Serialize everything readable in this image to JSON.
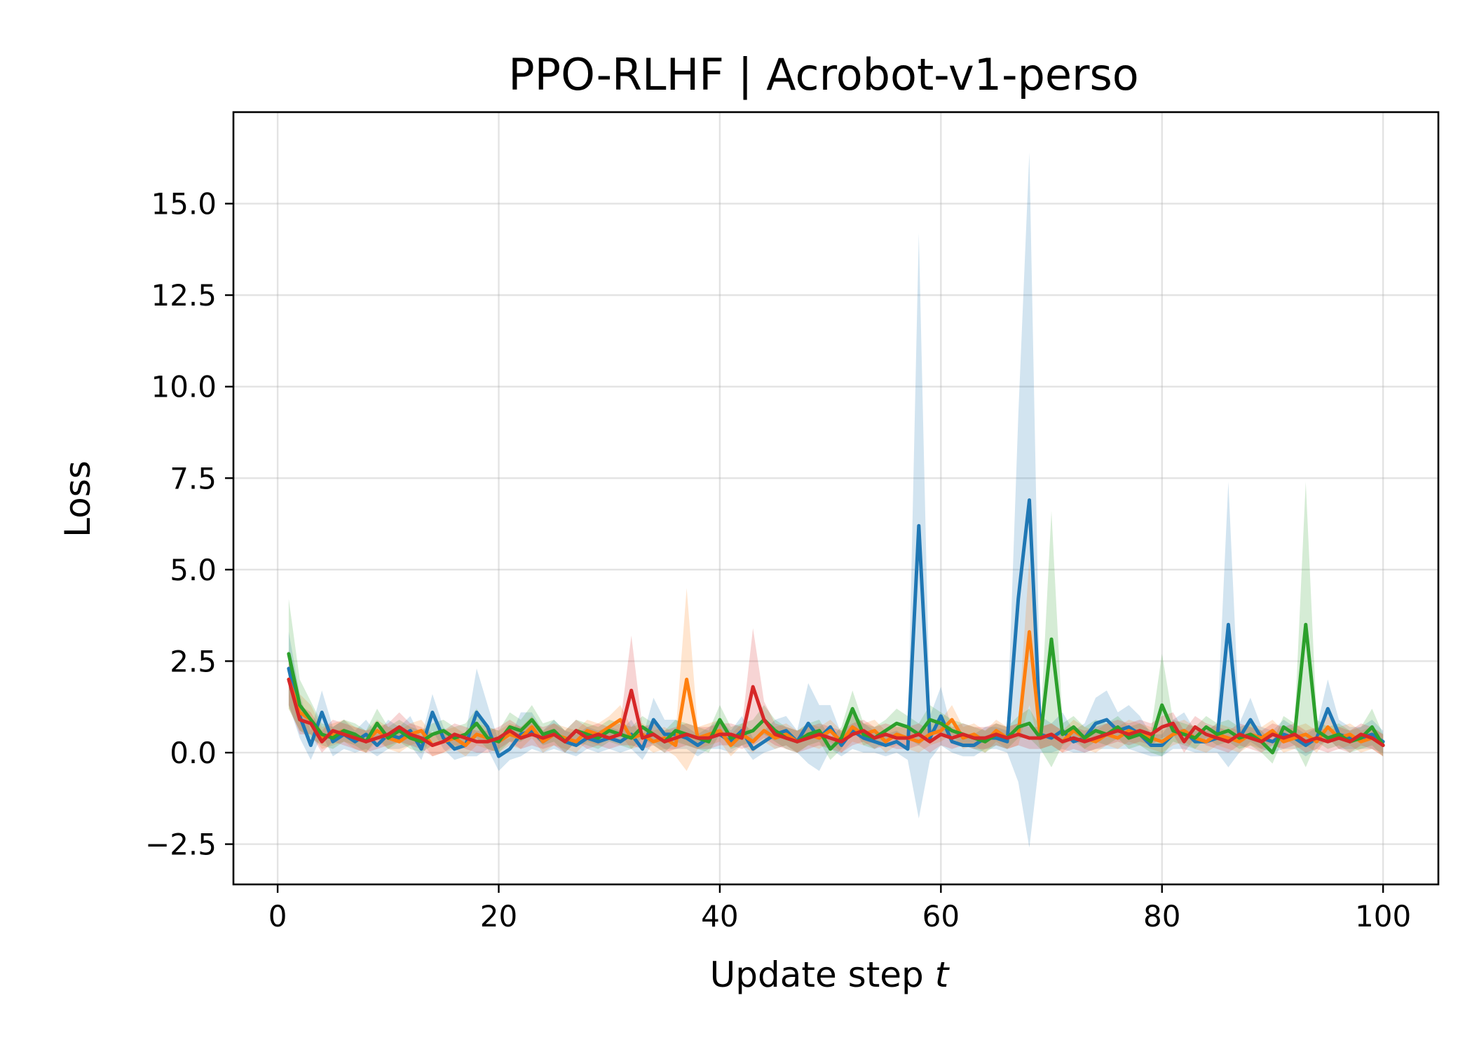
{
  "chart_data": {
    "type": "line",
    "title": "PPO-RLHF | Acrobot-v1-perso",
    "xlabel_text": "Update step ",
    "xlabel_var": "t",
    "ylabel": "Loss",
    "xlim": [
      -4,
      105
    ],
    "ylim": [
      -3.6,
      17.5
    ],
    "xticks": [
      0,
      20,
      40,
      60,
      80,
      100
    ],
    "xtick_labels": [
      "0",
      "20",
      "40",
      "60",
      "80",
      "100"
    ],
    "yticks": [
      -2.5,
      0.0,
      2.5,
      5.0,
      7.5,
      10.0,
      12.5,
      15.0
    ],
    "ytick_labels": [
      "−2.5",
      "0.0",
      "2.5",
      "5.0",
      "7.5",
      "10.0",
      "12.5",
      "15.0"
    ],
    "grid": true,
    "x_start": 1,
    "series": [
      {
        "color": "#1f77b4",
        "values": [
          2.3,
          1.0,
          0.2,
          1.1,
          0.3,
          0.5,
          0.3,
          0.5,
          0.2,
          0.5,
          0.4,
          0.6,
          0.1,
          1.1,
          0.4,
          0.1,
          0.2,
          1.1,
          0.7,
          -0.1,
          0.1,
          0.5,
          0.6,
          0.3,
          0.5,
          0.3,
          0.2,
          0.4,
          0.3,
          0.4,
          0.3,
          0.5,
          0.1,
          0.9,
          0.5,
          0.5,
          0.4,
          0.2,
          0.4,
          0.5,
          0.3,
          0.6,
          0.1,
          0.3,
          0.5,
          0.6,
          0.3,
          0.8,
          0.4,
          0.7,
          0.2,
          0.6,
          0.4,
          0.3,
          0.2,
          0.3,
          0.1,
          6.2,
          0.4,
          1.0,
          0.3,
          0.2,
          0.2,
          0.4,
          0.4,
          0.3,
          4.2,
          6.9,
          0.5,
          0.4,
          0.6,
          0.3,
          0.4,
          0.8,
          0.9,
          0.6,
          0.7,
          0.5,
          0.2,
          0.2,
          0.5,
          0.6,
          0.3,
          0.3,
          0.4,
          3.5,
          0.4,
          0.9,
          0.4,
          0.3,
          0.5,
          0.4,
          0.2,
          0.4,
          1.2,
          0.5,
          0.4,
          0.4,
          0.5,
          0.3
        ],
        "spread": [
          1.0,
          0.6,
          0.4,
          0.6,
          0.4,
          0.4,
          0.3,
          0.4,
          0.3,
          0.4,
          0.3,
          0.4,
          0.3,
          0.5,
          0.3,
          0.3,
          0.3,
          1.2,
          0.6,
          0.4,
          0.3,
          0.6,
          0.5,
          0.3,
          0.4,
          0.3,
          0.3,
          0.3,
          0.3,
          0.3,
          0.3,
          0.4,
          0.3,
          0.6,
          0.4,
          0.4,
          0.3,
          0.3,
          0.3,
          0.4,
          0.3,
          0.4,
          0.3,
          0.3,
          0.4,
          0.4,
          0.3,
          1.1,
          0.9,
          0.6,
          0.3,
          0.5,
          0.4,
          0.3,
          0.3,
          0.3,
          0.3,
          8.0,
          0.6,
          0.8,
          0.3,
          0.3,
          0.3,
          0.3,
          0.3,
          0.3,
          5.0,
          9.5,
          0.5,
          0.4,
          0.5,
          0.3,
          0.4,
          0.7,
          0.8,
          0.5,
          0.6,
          0.5,
          0.3,
          0.3,
          0.4,
          0.5,
          0.3,
          0.3,
          0.4,
          3.9,
          0.4,
          0.6,
          0.3,
          0.3,
          0.4,
          0.3,
          0.3,
          0.3,
          0.8,
          0.4,
          0.3,
          0.3,
          0.4,
          0.3
        ]
      },
      {
        "color": "#ff7f0e",
        "values": [
          2.0,
          1.1,
          0.9,
          0.4,
          0.5,
          0.6,
          0.4,
          0.3,
          0.6,
          0.4,
          0.3,
          0.5,
          0.6,
          0.2,
          0.3,
          0.4,
          0.2,
          0.5,
          0.4,
          0.3,
          0.5,
          0.4,
          0.7,
          0.3,
          0.5,
          0.4,
          0.3,
          0.6,
          0.5,
          0.7,
          0.9,
          0.4,
          0.5,
          0.3,
          0.4,
          0.2,
          2.0,
          0.4,
          0.5,
          0.6,
          0.2,
          0.5,
          0.3,
          0.6,
          0.4,
          0.5,
          0.3,
          0.5,
          0.4,
          0.6,
          0.3,
          0.7,
          0.5,
          0.6,
          0.3,
          0.5,
          0.4,
          0.3,
          0.5,
          0.6,
          0.9,
          0.4,
          0.5,
          0.3,
          0.6,
          0.4,
          0.5,
          3.3,
          0.4,
          0.5,
          0.3,
          0.6,
          0.4,
          0.3,
          0.5,
          0.4,
          0.6,
          0.5,
          0.4,
          0.3,
          0.5,
          0.6,
          0.4,
          0.3,
          0.5,
          0.4,
          0.3,
          0.5,
          0.4,
          0.6,
          0.3,
          0.4,
          0.5,
          0.3,
          0.7,
          0.4,
          0.5,
          0.3,
          0.4,
          0.2
        ],
        "spread": [
          0.8,
          0.5,
          0.4,
          0.3,
          0.3,
          0.3,
          0.3,
          0.3,
          0.3,
          0.3,
          0.3,
          0.3,
          0.3,
          0.3,
          0.3,
          0.3,
          0.3,
          0.3,
          0.3,
          0.3,
          0.3,
          0.3,
          0.3,
          0.3,
          0.3,
          0.3,
          0.3,
          0.3,
          0.3,
          0.3,
          0.4,
          0.3,
          0.3,
          0.3,
          0.3,
          0.3,
          2.5,
          0.3,
          0.3,
          0.3,
          0.3,
          0.3,
          0.3,
          0.3,
          0.3,
          0.3,
          0.3,
          0.3,
          0.3,
          0.3,
          0.3,
          0.4,
          0.3,
          0.3,
          0.3,
          0.3,
          0.3,
          0.3,
          0.3,
          0.3,
          0.4,
          0.3,
          0.3,
          0.3,
          0.3,
          0.3,
          0.3,
          2.0,
          0.3,
          0.3,
          0.3,
          0.3,
          0.3,
          0.3,
          0.3,
          0.3,
          0.3,
          0.3,
          0.3,
          0.3,
          0.3,
          0.3,
          0.3,
          0.3,
          0.3,
          0.3,
          0.3,
          0.3,
          0.3,
          0.3,
          0.3,
          0.3,
          0.3,
          0.3,
          0.3,
          0.3,
          0.3,
          0.3,
          0.3,
          0.3
        ]
      },
      {
        "color": "#2ca02c",
        "values": [
          2.7,
          1.3,
          0.9,
          0.5,
          0.4,
          0.6,
          0.5,
          0.3,
          0.8,
          0.4,
          0.6,
          0.4,
          0.3,
          0.5,
          0.6,
          0.4,
          0.5,
          0.8,
          0.4,
          0.3,
          0.7,
          0.6,
          0.9,
          0.5,
          0.6,
          0.3,
          0.6,
          0.5,
          0.4,
          0.6,
          0.5,
          0.4,
          0.7,
          0.5,
          0.3,
          0.6,
          0.5,
          0.4,
          0.3,
          0.9,
          0.4,
          0.5,
          0.6,
          0.9,
          0.6,
          0.4,
          0.3,
          0.5,
          0.6,
          0.1,
          0.4,
          1.2,
          0.5,
          0.4,
          0.6,
          0.8,
          0.7,
          0.5,
          0.9,
          0.8,
          0.6,
          0.5,
          0.4,
          0.3,
          0.5,
          0.4,
          0.7,
          0.8,
          0.4,
          3.1,
          0.5,
          0.7,
          0.4,
          0.6,
          0.5,
          0.7,
          0.4,
          0.5,
          0.3,
          1.3,
          0.6,
          0.5,
          0.4,
          0.7,
          0.5,
          0.6,
          0.4,
          0.5,
          0.3,
          0.0,
          0.7,
          0.5,
          3.5,
          0.6,
          0.4,
          0.5,
          0.3,
          0.4,
          0.7,
          0.2
        ],
        "spread": [
          1.5,
          0.7,
          0.5,
          0.3,
          0.3,
          0.3,
          0.3,
          0.3,
          0.4,
          0.3,
          0.3,
          0.3,
          0.3,
          0.3,
          0.3,
          0.3,
          0.3,
          0.4,
          0.3,
          0.3,
          0.4,
          0.3,
          0.4,
          0.3,
          0.3,
          0.3,
          0.3,
          0.3,
          0.3,
          0.3,
          0.3,
          0.3,
          0.3,
          0.3,
          0.3,
          0.3,
          0.3,
          0.3,
          0.3,
          0.4,
          0.3,
          0.3,
          0.3,
          0.4,
          0.3,
          0.3,
          0.3,
          0.3,
          0.3,
          0.3,
          0.3,
          0.5,
          0.3,
          0.3,
          0.3,
          0.4,
          0.3,
          0.3,
          0.4,
          0.3,
          0.3,
          0.3,
          0.3,
          0.3,
          0.3,
          0.3,
          0.3,
          0.4,
          0.3,
          3.5,
          0.3,
          0.3,
          0.3,
          0.3,
          0.3,
          0.3,
          0.3,
          0.3,
          0.3,
          1.4,
          0.3,
          0.3,
          0.3,
          0.3,
          0.3,
          0.3,
          0.3,
          0.3,
          0.3,
          0.3,
          0.3,
          0.3,
          3.9,
          0.3,
          0.3,
          0.3,
          0.3,
          0.3,
          0.5,
          0.3
        ]
      },
      {
        "color": "#d62728",
        "values": [
          2.0,
          0.9,
          0.8,
          0.3,
          0.6,
          0.5,
          0.4,
          0.3,
          0.4,
          0.5,
          0.7,
          0.5,
          0.4,
          0.2,
          0.3,
          0.5,
          0.4,
          0.3,
          0.3,
          0.4,
          0.6,
          0.4,
          0.5,
          0.4,
          0.5,
          0.3,
          0.6,
          0.4,
          0.5,
          0.4,
          0.5,
          1.7,
          0.4,
          0.5,
          0.3,
          0.4,
          0.5,
          0.4,
          0.4,
          0.5,
          0.5,
          0.4,
          1.8,
          0.9,
          0.5,
          0.4,
          0.3,
          0.4,
          0.5,
          0.4,
          0.3,
          0.5,
          0.6,
          0.4,
          0.5,
          0.4,
          0.4,
          0.5,
          0.3,
          0.5,
          0.4,
          0.5,
          0.4,
          0.4,
          0.5,
          0.4,
          0.5,
          0.4,
          0.4,
          0.5,
          0.3,
          0.4,
          0.3,
          0.4,
          0.5,
          0.6,
          0.5,
          0.6,
          0.5,
          0.7,
          0.8,
          0.3,
          0.7,
          0.5,
          0.4,
          0.3,
          0.5,
          0.4,
          0.3,
          0.5,
          0.4,
          0.5,
          0.3,
          0.4,
          0.3,
          0.4,
          0.3,
          0.5,
          0.4,
          0.2
        ],
        "spread": [
          0.7,
          0.4,
          0.3,
          0.3,
          0.3,
          0.3,
          0.3,
          0.3,
          0.3,
          0.3,
          0.4,
          0.3,
          0.3,
          0.3,
          0.3,
          0.3,
          0.3,
          0.3,
          0.3,
          0.3,
          0.3,
          0.3,
          0.3,
          0.3,
          0.3,
          0.3,
          0.3,
          0.3,
          0.3,
          0.3,
          0.3,
          1.5,
          0.3,
          0.3,
          0.3,
          0.3,
          0.3,
          0.3,
          0.3,
          0.3,
          0.3,
          0.3,
          1.6,
          0.5,
          0.3,
          0.3,
          0.3,
          0.3,
          0.3,
          0.3,
          0.3,
          0.3,
          0.3,
          0.3,
          0.3,
          0.3,
          0.3,
          0.3,
          0.3,
          0.3,
          0.3,
          0.3,
          0.3,
          0.3,
          0.3,
          0.3,
          0.3,
          0.3,
          0.3,
          0.3,
          0.3,
          0.3,
          0.3,
          0.3,
          0.3,
          0.3,
          0.3,
          0.3,
          0.3,
          0.3,
          0.3,
          0.3,
          0.3,
          0.3,
          0.3,
          0.3,
          0.3,
          0.3,
          0.3,
          0.3,
          0.3,
          0.3,
          0.3,
          0.3,
          0.3,
          0.3,
          0.3,
          0.3,
          0.3,
          0.3
        ]
      }
    ]
  }
}
